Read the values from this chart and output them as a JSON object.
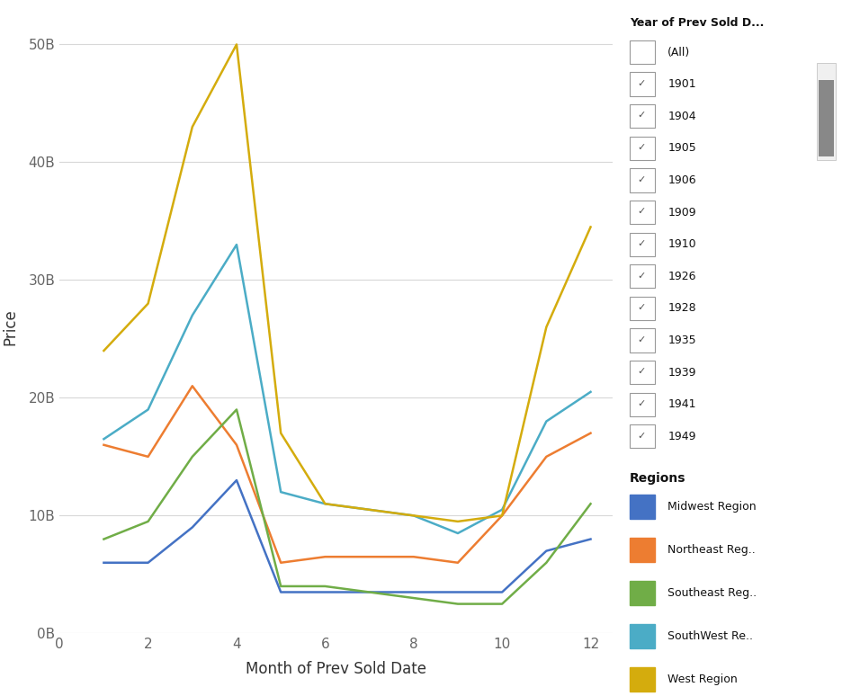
{
  "months": [
    1,
    2,
    3,
    4,
    5,
    6,
    7,
    8,
    9,
    10,
    11,
    12
  ],
  "series": {
    "Midwest Region": {
      "color": "#4472C4",
      "values": [
        6,
        6,
        9,
        13,
        3.5,
        3.5,
        3.5,
        3.5,
        3.5,
        3.5,
        7,
        8
      ]
    },
    "Northeast Reg..": {
      "color": "#ED7D31",
      "values": [
        16,
        15,
        21,
        16,
        6,
        6.5,
        6.5,
        6.5,
        6,
        10,
        15,
        17
      ]
    },
    "SouthWest Re..": {
      "color": "#4BACC6",
      "values": [
        16.5,
        19,
        27,
        33,
        12,
        11,
        10.5,
        10,
        8.5,
        10.5,
        18,
        20.5
      ]
    },
    "Southeast Reg..": {
      "color": "#70AD47",
      "values": [
        8,
        9.5,
        15,
        19,
        4,
        4,
        3.5,
        3,
        2.5,
        2.5,
        6,
        11
      ]
    },
    "West Region": {
      "color": "#D4AC0D",
      "values": [
        24,
        28,
        43,
        50,
        17,
        11,
        10.5,
        10,
        9.5,
        10,
        26,
        34.5
      ]
    }
  },
  "xlabel": "Month of Prev Sold Date",
  "ylabel": "Price",
  "xlim": [
    0,
    12.5
  ],
  "ylim": [
    0,
    52
  ],
  "xticks": [
    0,
    2,
    4,
    6,
    8,
    10,
    12
  ],
  "ytick_labels": [
    "0B",
    "10B",
    "20B",
    "30B",
    "40B",
    "50B"
  ],
  "ytick_values": [
    0,
    10,
    20,
    30,
    40,
    50
  ],
  "filter_title": "Year of Prev Sold D...",
  "filter_items": [
    "(All)",
    "1901",
    "1904",
    "1905",
    "1906",
    "1909",
    "1910",
    "1926",
    "1928",
    "1935",
    "1939",
    "1941",
    "1949"
  ],
  "legend_title": "Regions",
  "legend_order": [
    "Midwest Region",
    "Northeast Reg..",
    "SouthWest Re..",
    "Southeast Reg..",
    "West Region"
  ],
  "legend_display": [
    "Midwest Region",
    "Northeast Reg..",
    "Southeast Reg..",
    "SouthWest Re..",
    "West Region"
  ],
  "background_color": "#FFFFFF",
  "grid_color": "#D8D8D8",
  "line_width": 1.8
}
